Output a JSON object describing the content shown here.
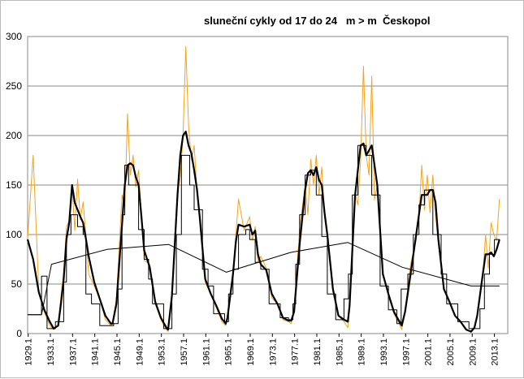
{
  "chart_data": {
    "type": "line",
    "title": "sluneční cykly od 17 do 24   m > m  Českopol",
    "xlabel": "",
    "ylabel": "",
    "xlim": [
      1929.0,
      2015.5
    ],
    "ylim": [
      0,
      300
    ],
    "y_ticks": [
      0,
      50,
      100,
      150,
      200,
      250,
      300
    ],
    "x_tick_labels": [
      "1929.1",
      "1933.1",
      "1937.1",
      "1941.1",
      "1945.1",
      "1949.1",
      "1953.1",
      "1957.1",
      "1961.1",
      "1965.1",
      "1969.1",
      "1973.1",
      "1977.1",
      "1981.1",
      "1985.1",
      "1989.1",
      "1993.1",
      "1997.1",
      "2001.1",
      "2005.1",
      "2009.1",
      "2013.1"
    ],
    "grid": "horizontal",
    "legend": "none",
    "series": [
      {
        "kind": "monthly (orange)",
        "color": "#f5a31b",
        "x": [
          1929.0,
          1930.0,
          1931.0,
          1932.0,
          1933.0,
          1933.7,
          1934.5,
          1935.0,
          1935.5,
          1936.0,
          1936.5,
          1937.0,
          1937.5,
          1938.0,
          1938.5,
          1939.0,
          1939.5,
          1940.0,
          1941.0,
          1942.0,
          1943.0,
          1944.0,
          1944.3,
          1945.0,
          1946.0,
          1946.5,
          1947.0,
          1947.5,
          1948.0,
          1948.5,
          1949.0,
          1949.5,
          1950.0,
          1951.0,
          1952.0,
          1953.0,
          1954.0,
          1954.3,
          1955.0,
          1956.0,
          1956.5,
          1957.0,
          1957.5,
          1958.0,
          1958.5,
          1959.0,
          1959.5,
          1960.0,
          1961.0,
          1962.0,
          1963.0,
          1964.0,
          1964.7,
          1965.0,
          1966.0,
          1966.5,
          1967.0,
          1968.0,
          1969.0,
          1969.5,
          1970.0,
          1970.5,
          1971.0,
          1972.0,
          1973.0,
          1974.0,
          1975.0,
          1976.0,
          1976.5,
          1977.0,
          1978.0,
          1979.0,
          1979.5,
          1980.0,
          1980.5,
          1981.0,
          1981.5,
          1982.0,
          1982.5,
          1983.0,
          1984.0,
          1985.0,
          1986.0,
          1986.7,
          1987.0,
          1988.0,
          1988.5,
          1989.0,
          1989.5,
          1990.0,
          1990.5,
          1991.0,
          1991.5,
          1992.0,
          1993.0,
          1994.0,
          1995.0,
          1996.0,
          1996.4,
          1997.0,
          1998.0,
          1999.0,
          1999.5,
          2000.0,
          2000.5,
          2001.0,
          2001.5,
          2002.0,
          2002.5,
          2003.0,
          2004.0,
          2005.0,
          2006.0,
          2007.0,
          2008.0,
          2008.9,
          2009.5,
          2010.0,
          2011.0,
          2011.5,
          2012.0,
          2012.5,
          2013.0,
          2013.5,
          2014.0
        ],
        "y": [
          96,
          180,
          44,
          22,
          8,
          4,
          9,
          38,
          62,
          108,
          114,
          150,
          104,
          156,
          115,
          133,
          100,
          60,
          48,
          35,
          14,
          8,
          12,
          35,
          140,
          128,
          222,
          160,
          180,
          148,
          165,
          118,
          74,
          70,
          30,
          14,
          4,
          2,
          40,
          142,
          158,
          200,
          290,
          210,
          175,
          190,
          145,
          118,
          52,
          40,
          26,
          12,
          8,
          18,
          62,
          98,
          136,
          104,
          118,
          94,
          108,
          72,
          78,
          66,
          36,
          30,
          14,
          12,
          10,
          26,
          106,
          150,
          120,
          176,
          150,
          180,
          140,
          168,
          118,
          96,
          42,
          18,
          12,
          6,
          32,
          142,
          130,
          175,
          270,
          180,
          160,
          260,
          135,
          150,
          60,
          38,
          20,
          9,
          4,
          22,
          70,
          95,
          118,
          170,
          125,
          160,
          122,
          160,
          118,
          92,
          44,
          32,
          18,
          12,
          5,
          1,
          6,
          18,
          58,
          100,
          66,
          112,
          100,
          94,
          136
        ]
      },
      {
        "kind": "smoothed (black bold)",
        "color": "#000000",
        "x": [
          1929.0,
          1930.0,
          1931.0,
          1932.0,
          1933.0,
          1933.7,
          1934.5,
          1935.0,
          1935.5,
          1936.0,
          1936.5,
          1937.0,
          1937.5,
          1938.0,
          1938.5,
          1939.0,
          1939.5,
          1940.0,
          1941.0,
          1942.0,
          1943.0,
          1944.0,
          1944.3,
          1945.0,
          1946.0,
          1946.5,
          1947.0,
          1947.5,
          1948.0,
          1948.5,
          1949.0,
          1949.5,
          1950.0,
          1951.0,
          1952.0,
          1953.0,
          1954.0,
          1954.3,
          1955.0,
          1956.0,
          1956.5,
          1957.0,
          1957.5,
          1958.0,
          1958.5,
          1959.0,
          1959.5,
          1960.0,
          1961.0,
          1962.0,
          1963.0,
          1964.0,
          1964.7,
          1965.0,
          1966.0,
          1966.5,
          1967.0,
          1968.0,
          1969.0,
          1969.5,
          1970.0,
          1970.5,
          1971.0,
          1972.0,
          1973.0,
          1974.0,
          1975.0,
          1976.0,
          1976.5,
          1977.0,
          1978.0,
          1979.0,
          1979.5,
          1980.0,
          1980.5,
          1981.0,
          1981.5,
          1982.0,
          1982.5,
          1983.0,
          1984.0,
          1985.0,
          1986.0,
          1986.7,
          1987.0,
          1988.0,
          1988.5,
          1989.0,
          1989.5,
          1990.0,
          1990.5,
          1991.0,
          1991.5,
          1992.0,
          1993.0,
          1994.0,
          1995.0,
          1996.0,
          1996.4,
          1997.0,
          1998.0,
          1999.0,
          1999.5,
          2000.0,
          2000.5,
          2001.0,
          2001.5,
          2002.0,
          2002.5,
          2003.0,
          2004.0,
          2005.0,
          2006.0,
          2007.0,
          2008.0,
          2008.9,
          2009.5,
          2010.0,
          2011.0,
          2011.5,
          2012.0,
          2012.5,
          2013.0,
          2013.5,
          2014.0
        ],
        "y": [
          95,
          75,
          42,
          24,
          12,
          5,
          8,
          30,
          55,
          95,
          112,
          150,
          132,
          125,
          118,
          112,
          96,
          78,
          52,
          35,
          18,
          10,
          10,
          30,
          110,
          150,
          170,
          172,
          170,
          158,
          150,
          118,
          84,
          67,
          32,
          16,
          6,
          4,
          38,
          140,
          180,
          200,
          204,
          190,
          182,
          165,
          146,
          118,
          55,
          40,
          28,
          15,
          10,
          16,
          60,
          92,
          110,
          108,
          110,
          100,
          104,
          80,
          70,
          64,
          40,
          30,
          16,
          13,
          13,
          22,
          90,
          145,
          162,
          165,
          160,
          168,
          155,
          150,
          122,
          100,
          45,
          18,
          14,
          12,
          28,
          140,
          165,
          190,
          192,
          180,
          185,
          190,
          170,
          150,
          60,
          40,
          22,
          12,
          8,
          22,
          60,
          100,
          120,
          140,
          140,
          140,
          145,
          145,
          132,
          95,
          45,
          32,
          18,
          12,
          4,
          2,
          6,
          18,
          60,
          80,
          80,
          82,
          78,
          85,
          95
        ]
      },
      {
        "kind": "step (thin black)",
        "color": "#000000",
        "x": [
          1929.0,
          1931.5,
          1931.5,
          1932.5,
          1932.5,
          1934.0,
          1934.0,
          1935.5,
          1935.5,
          1936.0,
          1936.0,
          1936.8,
          1936.8,
          1938.0,
          1938.0,
          1939.0,
          1939.0,
          1939.5,
          1939.5,
          1940.5,
          1940.5,
          1942.0,
          1942.0,
          1944.5,
          1944.5,
          1945.3,
          1945.3,
          1946.0,
          1946.0,
          1946.5,
          1946.5,
          1947.2,
          1947.2,
          1949.0,
          1949.0,
          1950.0,
          1950.0,
          1950.8,
          1950.8,
          1951.5,
          1951.5,
          1953.5,
          1953.5,
          1955.0,
          1955.0,
          1955.8,
          1955.8,
          1956.7,
          1956.7,
          1958.2,
          1958.2,
          1959.0,
          1959.0,
          1960.5,
          1960.5,
          1961.5,
          1961.5,
          1962.5,
          1962.5,
          1964.5,
          1964.5,
          1965.2,
          1965.2,
          1966.0,
          1966.0,
          1967.0,
          1967.0,
          1968.3,
          1968.3,
          1969.0,
          1969.0,
          1970.0,
          1970.0,
          1971.0,
          1971.0,
          1972.5,
          1972.5,
          1974.5,
          1974.5,
          1976.0,
          1976.0,
          1976.8,
          1976.8,
          1977.3,
          1977.3,
          1978.0,
          1978.0,
          1979.0,
          1979.0,
          1980.0,
          1980.0,
          1981.0,
          1981.0,
          1982.0,
          1982.0,
          1983.0,
          1983.0,
          1984.5,
          1984.5,
          1986.0,
          1986.0,
          1986.8,
          1986.8,
          1987.5,
          1987.5,
          1988.5,
          1988.5,
          1990.0,
          1990.0,
          1991.0,
          1991.0,
          1992.5,
          1992.5,
          1994.0,
          1994.0,
          1995.5,
          1995.5,
          1996.3,
          1996.3,
          1997.5,
          1997.5,
          1998.5,
          1998.5,
          1999.5,
          1999.5,
          2000.5,
          2000.5,
          2002.0,
          2002.0,
          2003.5,
          2003.5,
          2004.5,
          2004.5,
          2006.5,
          2006.5,
          2008.5,
          2008.5,
          2010.5,
          2010.5,
          2011.3,
          2011.3,
          2012.2,
          2012.2,
          2013.1,
          2013.1,
          2014.0
        ],
        "y": [
          19,
          19,
          58,
          58,
          5,
          5,
          12,
          12,
          52,
          52,
          100,
          100,
          120,
          120,
          108,
          108,
          100,
          100,
          40,
          40,
          30,
          30,
          8,
          8,
          10,
          10,
          45,
          45,
          120,
          120,
          170,
          170,
          150,
          150,
          105,
          105,
          75,
          75,
          55,
          55,
          30,
          30,
          5,
          5,
          40,
          40,
          100,
          100,
          180,
          180,
          150,
          150,
          125,
          125,
          65,
          65,
          48,
          48,
          20,
          20,
          12,
          12,
          40,
          40,
          65,
          65,
          100,
          100,
          105,
          105,
          95,
          95,
          72,
          72,
          65,
          65,
          30,
          30,
          16,
          16,
          14,
          14,
          30,
          30,
          70,
          70,
          120,
          120,
          160,
          160,
          165,
          165,
          140,
          140,
          98,
          98,
          40,
          40,
          14,
          14,
          35,
          35,
          60,
          60,
          140,
          140,
          190,
          190,
          180,
          180,
          140,
          140,
          48,
          48,
          24,
          24,
          10,
          10,
          45,
          45,
          60,
          60,
          100,
          100,
          130,
          130,
          145,
          145,
          100,
          100,
          60,
          60,
          30,
          30,
          12,
          12,
          5,
          5,
          25,
          25,
          60,
          60,
          80,
          80,
          95,
          95
        ]
      },
      {
        "kind": "cycle mean (thin black, staircase)",
        "color": "#000000",
        "x": [
          1929.0,
          1931.5,
          1933.3,
          1943.3,
          1954.4,
          1964.8,
          1976.4,
          1986.7,
          1996.5,
          2008.9,
          2014.0
        ],
        "y": [
          19,
          19,
          70,
          85,
          90,
          62,
          82,
          92,
          67,
          48,
          48
        ]
      }
    ]
  }
}
